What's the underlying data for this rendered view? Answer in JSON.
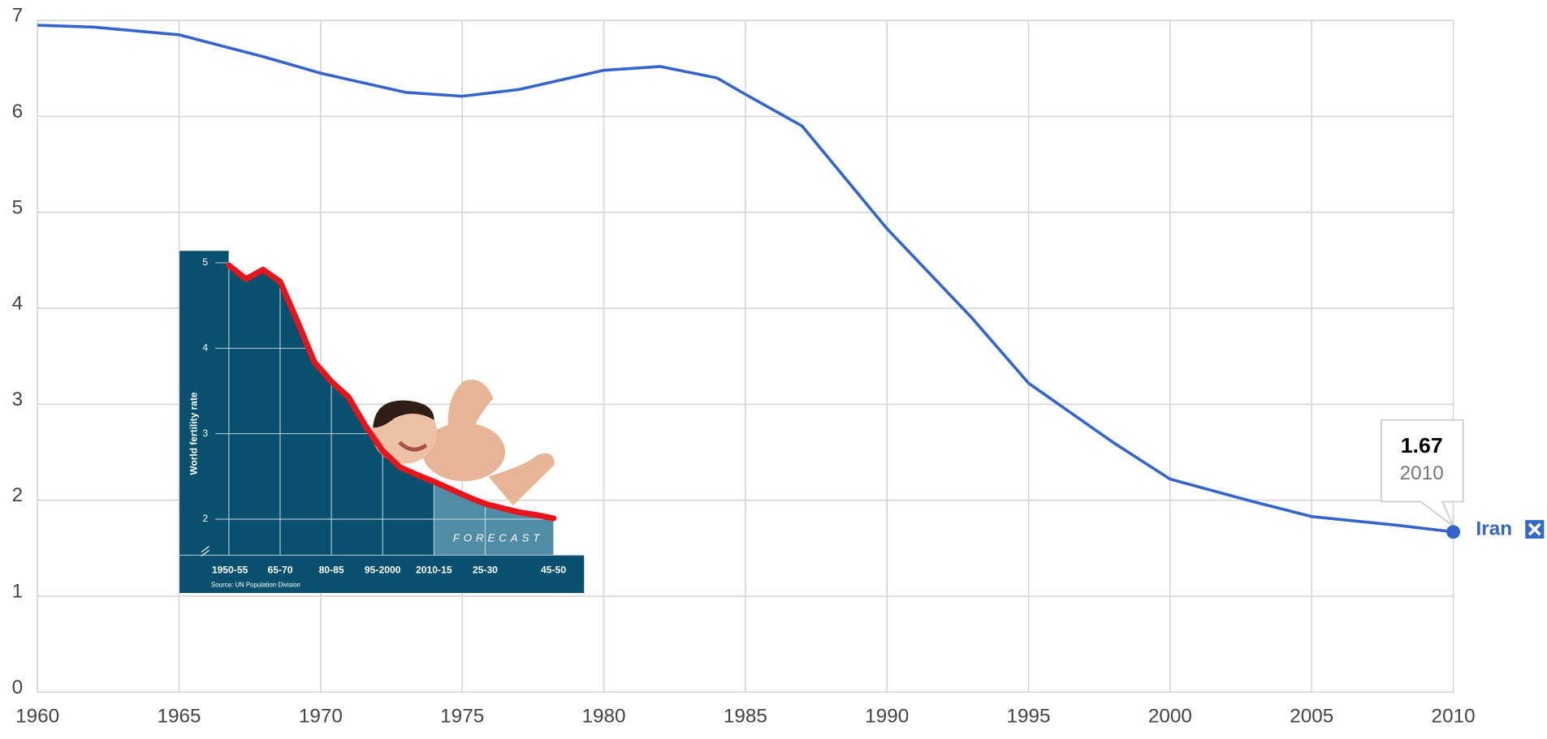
{
  "chart_data": [
    {
      "type": "line",
      "x": [
        1960,
        1962,
        1965,
        1968,
        1970,
        1973,
        1975,
        1977,
        1980,
        1982,
        1984,
        1985,
        1987,
        1990,
        1993,
        1995,
        1998,
        2000,
        2003,
        2005,
        2008,
        2010
      ],
      "series": [
        {
          "name": "Iran",
          "color": "#3366cc",
          "values": [
            6.95,
            6.93,
            6.85,
            6.62,
            6.45,
            6.25,
            6.21,
            6.28,
            6.48,
            6.52,
            6.4,
            6.23,
            5.9,
            4.83,
            3.9,
            3.22,
            2.6,
            2.22,
            1.98,
            1.83,
            1.74,
            1.67
          ]
        }
      ],
      "xlim": [
        1960,
        2010
      ],
      "ylim": [
        0,
        7
      ],
      "xticks": [
        1960,
        1965,
        1970,
        1975,
        1980,
        1985,
        1990,
        1995,
        2000,
        2005,
        2010
      ],
      "yticks": [
        0,
        1,
        2,
        3,
        4,
        5,
        6,
        7
      ],
      "grid": true
    },
    {
      "type": "line",
      "y_label": "World fertility rate",
      "note": "Source: UN Population Division",
      "annotation": "FORECAST",
      "categories": [
        "1950-55",
        null,
        null,
        "65-70",
        null,
        null,
        "80-85",
        null,
        null,
        "95-2000",
        null,
        null,
        "2010-15",
        null,
        null,
        "25-30",
        null,
        null,
        null,
        "45-50"
      ],
      "series": [
        {
          "color": "#e8141a",
          "values": [
            4.97,
            4.81,
            4.92,
            4.78,
            4.32,
            3.84,
            3.61,
            3.43,
            3.09,
            2.8,
            2.61,
            2.52,
            2.44,
            2.35,
            2.26,
            2.18,
            2.13,
            2.08,
            2.05,
            2.01
          ]
        }
      ],
      "ylim": [
        1.58,
        5.14
      ],
      "yticks": [
        2,
        3,
        4,
        5
      ],
      "forecast_start": 12
    }
  ]
}
